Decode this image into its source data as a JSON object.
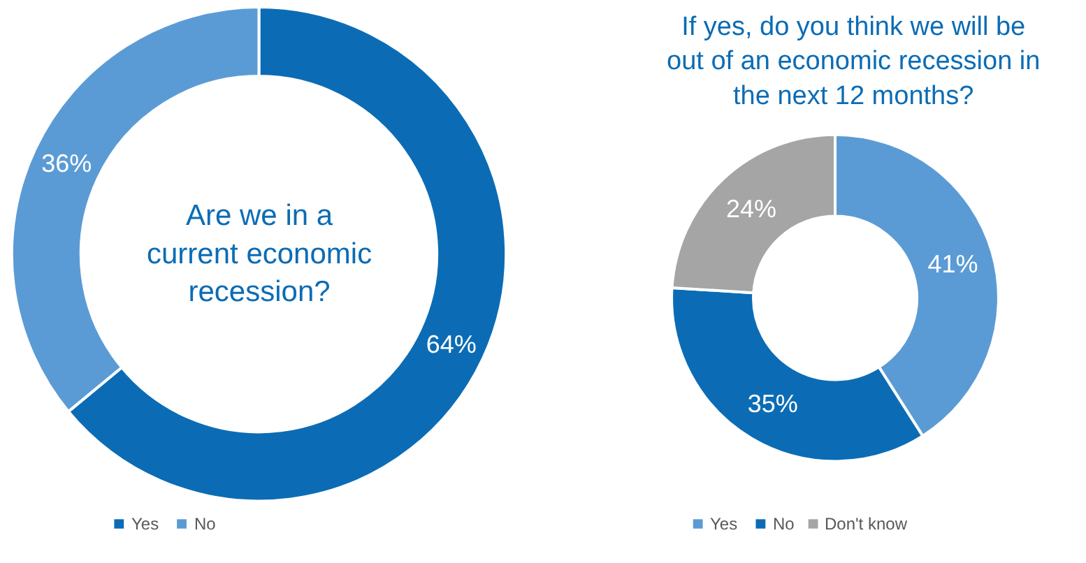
{
  "chart_data": [
    {
      "type": "donut",
      "title": "Are we in a current economic recession?",
      "categories": [
        "Yes",
        "No"
      ],
      "values": [
        64,
        36
      ],
      "value_labels": [
        "64%",
        "36%"
      ],
      "colors": [
        "#0b6cb5",
        "#5b9bd5"
      ],
      "legend": "bottom"
    },
    {
      "type": "donut",
      "title": "If yes, do you think we will be out of an economic recession in the next 12 months?",
      "categories": [
        "Yes",
        "No",
        "Don't know"
      ],
      "values": [
        41,
        35,
        24
      ],
      "value_labels": [
        "41%",
        "35%",
        "24%"
      ],
      "colors": [
        "#5b9bd5",
        "#0b6cb5",
        "#a5a5a5"
      ],
      "legend": "bottom"
    }
  ]
}
